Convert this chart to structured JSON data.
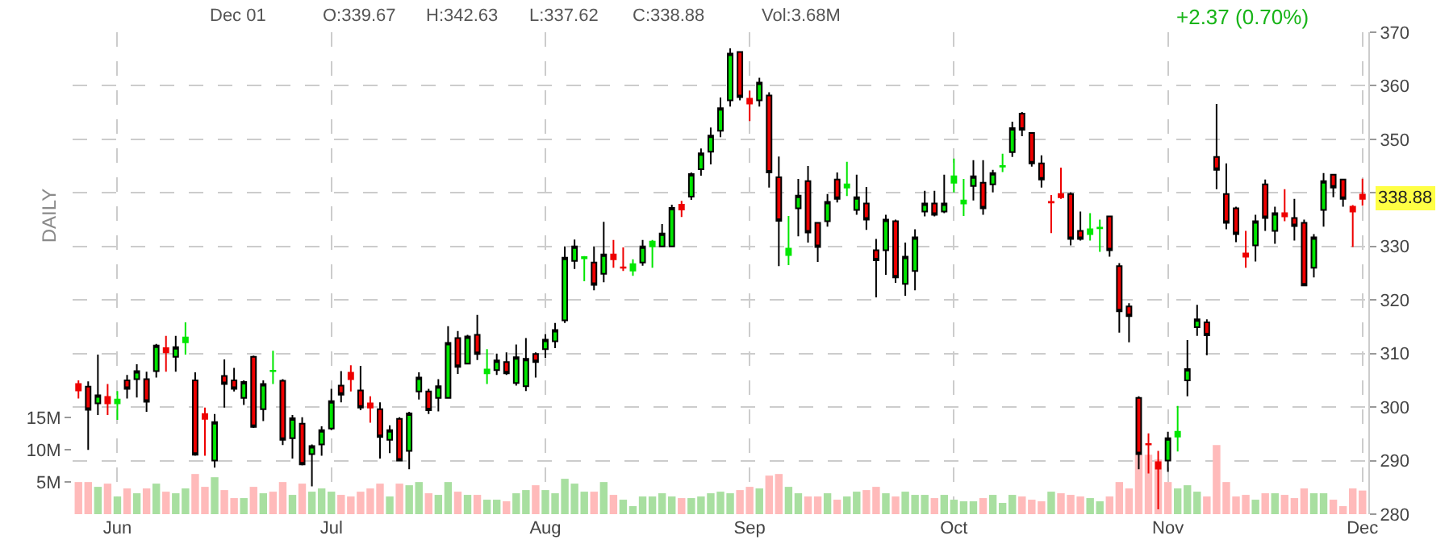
{
  "chart_data": {
    "type": "candlestick",
    "categories": [
      null,
      null,
      null,
      null,
      "Jun",
      null,
      null,
      null,
      null,
      null,
      null,
      null,
      null,
      null,
      null,
      null,
      null,
      null,
      null,
      null,
      null,
      null,
      null,
      null,
      null,
      null,
      "Jul",
      null,
      null,
      null,
      null,
      null,
      null,
      null,
      null,
      null,
      null,
      null,
      null,
      null,
      null,
      null,
      null,
      null,
      null,
      null,
      null,
      null,
      "Aug",
      null,
      null,
      null,
      null,
      null,
      null,
      null,
      null,
      null,
      null,
      null,
      null,
      null,
      null,
      null,
      null,
      null,
      null,
      null,
      null,
      "Sep",
      null,
      null,
      null,
      null,
      null,
      null,
      null,
      null,
      null,
      null,
      null,
      null,
      null,
      null,
      null,
      null,
      null,
      null,
      null,
      null,
      "Oct",
      null,
      null,
      null,
      null,
      null,
      null,
      null,
      null,
      null,
      null,
      null,
      null,
      null,
      null,
      null,
      null,
      null,
      null,
      null,
      null,
      null,
      "Nov",
      null,
      null,
      null,
      null,
      null,
      null,
      null,
      null,
      null,
      null,
      null,
      null,
      null,
      null,
      null,
      null,
      null,
      null,
      null,
      "Dec"
    ],
    "ohlc": [
      [
        304.3,
        305.0,
        301.6,
        303.1
      ],
      [
        303.8,
        304.8,
        292.0,
        299.5
      ],
      [
        300.7,
        309.8,
        298.5,
        302.2
      ],
      [
        301.9,
        304.3,
        298.5,
        300.7
      ],
      [
        300.7,
        303.0,
        297.6,
        301.4
      ],
      [
        305.0,
        306.0,
        301.6,
        303.4
      ],
      [
        305.2,
        308.0,
        301.8,
        306.7
      ],
      [
        305.2,
        306.6,
        299.1,
        301.0
      ],
      [
        306.7,
        311.8,
        305.5,
        311.5
      ],
      [
        311.0,
        313.3,
        306.6,
        310.2
      ],
      [
        309.4,
        313.3,
        306.6,
        311.2
      ],
      [
        312.1,
        315.8,
        309.8,
        313.0
      ],
      [
        305.0,
        306.5,
        290.9,
        291.1
      ],
      [
        298.7,
        299.9,
        290.9,
        297.8
      ],
      [
        290.0,
        298.7,
        288.7,
        297.2
      ],
      [
        305.8,
        308.9,
        299.9,
        304.3
      ],
      [
        305.0,
        307.3,
        302.9,
        303.4
      ],
      [
        301.7,
        305.0,
        300.4,
        304.7
      ],
      [
        309.4,
        309.6,
        296.1,
        296.3
      ],
      [
        299.6,
        305.0,
        297.4,
        304.3
      ],
      [
        306.7,
        310.5,
        304.3,
        306.8
      ],
      [
        304.9,
        305.2,
        292.9,
        293.9
      ],
      [
        294.2,
        298.5,
        290.4,
        297.9
      ],
      [
        296.9,
        298.1,
        289.1,
        289.3
      ],
      [
        291.2,
        293.0,
        285.2,
        292.7
      ],
      [
        293.0,
        296.4,
        290.9,
        295.7
      ],
      [
        296.0,
        303.4,
        295.7,
        301.1
      ],
      [
        304.0,
        306.7,
        300.9,
        302.3
      ],
      [
        306.4,
        307.8,
        302.9,
        305.2
      ],
      [
        303.1,
        307.7,
        299.4,
        299.9
      ],
      [
        300.7,
        302.0,
        297.1,
        299.9
      ],
      [
        299.6,
        300.9,
        290.4,
        294.4
      ],
      [
        293.9,
        296.6,
        291.4,
        295.7
      ],
      [
        297.8,
        298.1,
        289.9,
        290.0
      ],
      [
        291.8,
        299.1,
        288.4,
        298.8
      ],
      [
        302.9,
        306.5,
        301.4,
        305.5
      ],
      [
        302.9,
        303.4,
        298.7,
        299.4
      ],
      [
        301.7,
        305.2,
        299.2,
        303.9
      ],
      [
        301.7,
        315.1,
        301.7,
        312.0
      ],
      [
        312.9,
        314.2,
        306.2,
        307.5
      ],
      [
        308.1,
        313.5,
        308.0,
        313.2
      ],
      [
        313.5,
        317.2,
        308.8,
        309.9
      ],
      [
        306.3,
        310.8,
        304.3,
        307.0
      ],
      [
        306.9,
        310.0,
        306.0,
        308.7
      ],
      [
        308.4,
        310.2,
        306.0,
        306.3
      ],
      [
        304.5,
        311.7,
        304.0,
        309.3
      ],
      [
        303.9,
        312.9,
        303.0,
        309.0
      ],
      [
        309.9,
        310.2,
        305.5,
        308.4
      ],
      [
        310.8,
        313.6,
        309.2,
        312.6
      ],
      [
        312.3,
        315.7,
        311.0,
        314.4
      ],
      [
        316.2,
        330.0,
        315.7,
        327.9
      ],
      [
        327.3,
        331.3,
        325.8,
        330.0
      ],
      [
        327.8,
        328.2,
        323.5,
        328.0
      ],
      [
        327.0,
        330.0,
        321.8,
        322.8
      ],
      [
        324.9,
        334.6,
        323.3,
        328.5
      ],
      [
        328.5,
        331.2,
        326.0,
        327.6
      ],
      [
        326.1,
        329.8,
        325.4,
        326.0
      ],
      [
        325.5,
        327.6,
        324.5,
        326.7
      ],
      [
        327.0,
        331.2,
        326.4,
        330.0
      ],
      [
        330.0,
        331.2,
        326.0,
        330.9
      ],
      [
        330.0,
        334.2,
        330.0,
        332.4
      ],
      [
        330.0,
        337.8,
        330.0,
        337.2
      ],
      [
        337.8,
        338.5,
        335.5,
        336.9
      ],
      [
        339.3,
        343.8,
        338.7,
        343.5
      ],
      [
        344.4,
        348.3,
        343.2,
        347.4
      ],
      [
        347.7,
        352.2,
        345.3,
        350.7
      ],
      [
        351.6,
        357.8,
        350.4,
        355.8
      ],
      [
        357.3,
        367.0,
        356.1,
        366.0
      ],
      [
        366.3,
        366.3,
        357.3,
        357.9
      ],
      [
        357.6,
        359.1,
        353.4,
        356.7
      ],
      [
        357.3,
        361.5,
        356.1,
        360.6
      ],
      [
        358.2,
        358.8,
        341.0,
        343.8
      ],
      [
        342.9,
        346.8,
        326.3,
        334.8
      ],
      [
        328.4,
        335.7,
        326.5,
        329.6
      ],
      [
        337.1,
        342.6,
        331.9,
        339.5
      ],
      [
        342.2,
        345.0,
        330.7,
        332.6
      ],
      [
        334.4,
        334.4,
        327.1,
        329.9
      ],
      [
        334.7,
        339.8,
        333.7,
        338.3
      ],
      [
        342.5,
        343.8,
        338.2,
        338.9
      ],
      [
        341.0,
        345.8,
        339.4,
        341.6
      ],
      [
        336.8,
        343.4,
        335.9,
        339.2
      ],
      [
        338.0,
        341.1,
        333.1,
        335.0
      ],
      [
        329.3,
        331.4,
        320.5,
        327.4
      ],
      [
        329.3,
        335.9,
        324.7,
        335.0
      ],
      [
        334.7,
        335.0,
        323.2,
        324.2
      ],
      [
        323.0,
        330.7,
        320.8,
        328.1
      ],
      [
        325.4,
        333.2,
        321.8,
        331.7
      ],
      [
        336.5,
        340.4,
        335.6,
        338.0
      ],
      [
        338.0,
        340.4,
        335.6,
        335.9
      ],
      [
        336.5,
        343.4,
        336.2,
        338.0
      ],
      [
        341.9,
        346.4,
        340.1,
        343.1
      ],
      [
        338.0,
        342.6,
        335.7,
        338.6
      ],
      [
        341.3,
        346.1,
        338.6,
        343.1
      ],
      [
        341.9,
        346.1,
        335.9,
        337.1
      ],
      [
        341.6,
        344.3,
        340.1,
        343.7
      ],
      [
        344.9,
        347.3,
        343.9,
        345.0
      ],
      [
        347.6,
        353.3,
        346.7,
        352.1
      ],
      [
        354.8,
        355.1,
        350.6,
        351.8
      ],
      [
        351.2,
        351.2,
        344.9,
        345.5
      ],
      [
        345.5,
        347.0,
        341.0,
        342.5
      ],
      [
        338.3,
        339.6,
        332.5,
        338.2
      ],
      [
        339.8,
        344.7,
        338.9,
        339.2
      ],
      [
        339.8,
        340.1,
        330.2,
        331.4
      ],
      [
        332.9,
        336.5,
        331.1,
        331.4
      ],
      [
        332.3,
        336.2,
        331.1,
        333.2
      ],
      [
        333.4,
        335.0,
        329.0,
        333.5
      ],
      [
        335.6,
        335.6,
        328.1,
        329.3
      ],
      [
        326.3,
        326.9,
        313.9,
        317.9
      ],
      [
        318.8,
        319.4,
        312.1,
        317.0
      ],
      [
        301.7,
        302.0,
        288.4,
        291.2
      ],
      [
        293.1,
        295.1,
        287.6,
        293.0
      ],
      [
        289.7,
        291.8,
        280.9,
        288.5
      ],
      [
        290.0,
        295.4,
        287.9,
        294.2
      ],
      [
        294.5,
        300.2,
        291.7,
        295.4
      ],
      [
        305.0,
        312.5,
        302.0,
        307.1
      ],
      [
        314.9,
        319.1,
        313.3,
        316.4
      ],
      [
        315.8,
        316.4,
        309.7,
        313.4
      ],
      [
        346.7,
        356.6,
        340.7,
        344.3
      ],
      [
        339.8,
        345.5,
        333.2,
        334.4
      ],
      [
        337.1,
        337.4,
        330.8,
        332.3
      ],
      [
        328.7,
        332.9,
        326.0,
        328.1
      ],
      [
        330.2,
        335.9,
        327.2,
        334.7
      ],
      [
        341.6,
        342.5,
        332.9,
        335.3
      ],
      [
        332.9,
        337.4,
        330.5,
        336.2
      ],
      [
        336.2,
        340.7,
        334.7,
        335.6
      ],
      [
        335.3,
        338.9,
        331.1,
        333.8
      ],
      [
        334.4,
        335.0,
        322.7,
        322.7
      ],
      [
        326.0,
        332.3,
        324.2,
        331.7
      ],
      [
        336.8,
        343.7,
        333.7,
        342.2
      ],
      [
        343.4,
        343.4,
        339.2,
        341.0
      ],
      [
        342.5,
        342.5,
        337.4,
        338.9
      ],
      [
        337.4,
        337.7,
        329.9,
        336.5
      ],
      [
        339.67,
        342.63,
        337.62,
        338.88
      ]
    ],
    "colors": [
      "#ee0000",
      "#ee0000",
      "#00e600",
      "#ee0000",
      "#00e600",
      "#ee0000",
      "#00e600",
      "#ee0000",
      "#00e600",
      "#ee0000",
      "#00e600",
      "#00e600",
      "#ee0000",
      "#ee0000",
      "#00e600",
      "#ee0000",
      "#ee0000",
      "#00e600",
      "#ee0000",
      "#00e600",
      "#00e600",
      "#ee0000",
      "#00e600",
      "#ee0000",
      "#00e600",
      "#00e600",
      "#00e600",
      "#ee0000",
      "#ee0000",
      "#ee0000",
      "#ee0000",
      "#ee0000",
      "#00e600",
      "#ee0000",
      "#00e600",
      "#00e600",
      "#ee0000",
      "#00e600",
      "#00e600",
      "#ee0000",
      "#00e600",
      "#ee0000",
      "#00e600",
      "#00e600",
      "#ee0000",
      "#00e600",
      "#00e600",
      "#ee0000",
      "#00e600",
      "#00e600",
      "#00e600",
      "#00e600",
      "#00e600",
      "#ee0000",
      "#00e600",
      "#ee0000",
      "#ee0000",
      "#00e600",
      "#00e600",
      "#00e600",
      "#00e600",
      "#00e600",
      "#ee0000",
      "#00e600",
      "#00e600",
      "#00e600",
      "#00e600",
      "#00e600",
      "#ee0000",
      "#ee0000",
      "#00e600",
      "#ee0000",
      "#ee0000",
      "#00e600",
      "#00e600",
      "#ee0000",
      "#ee0000",
      "#00e600",
      "#ee0000",
      "#00e600",
      "#00e600",
      "#ee0000",
      "#ee0000",
      "#00e600",
      "#ee0000",
      "#00e600",
      "#00e600",
      "#00e600",
      "#ee0000",
      "#00e600",
      "#00e600",
      "#00e600",
      "#00e600",
      "#ee0000",
      "#00e600",
      "#00e600",
      "#00e600",
      "#ee0000",
      "#ee0000",
      "#ee0000",
      "#ee0000",
      "#ee0000",
      "#ee0000",
      "#ee0000",
      "#00e600",
      "#00e600",
      "#ee0000",
      "#ee0000",
      "#ee0000",
      "#ee0000",
      "#ee0000",
      "#ee0000",
      "#00e600",
      "#00e600",
      "#00e600",
      "#00e600",
      "#ee0000",
      "#ee0000",
      "#ee0000",
      "#ee0000",
      "#ee0000",
      "#00e600",
      "#ee0000",
      "#00e600",
      "#ee0000",
      "#ee0000",
      "#ee0000",
      "#00e600",
      "#00e600",
      "#ee0000",
      "#ee0000",
      "#ee0000",
      "#ee0000"
    ],
    "series": [
      {
        "type": "bar",
        "axis": "y2",
        "values": [
          5.0,
          5.0,
          4.25,
          4.75,
          2.75,
          4.0,
          3.25,
          4.0,
          4.75,
          3.5,
          3.25,
          4.0,
          6.25,
          4.25,
          5.75,
          3.75,
          2.5,
          2.5,
          4.25,
          3.25,
          3.5,
          5.0,
          3.0,
          4.75,
          3.5,
          4.0,
          3.5,
          3.0,
          2.75,
          3.5,
          4.0,
          4.75,
          2.75,
          4.75,
          4.5,
          5.0,
          3.25,
          3.0,
          5.0,
          3.5,
          3.0,
          3.0,
          2.25,
          2.25,
          2.0,
          3.25,
          3.75,
          4.5,
          3.75,
          3.25,
          5.5,
          4.75,
          3.5,
          3.5,
          5.0,
          3.0,
          2.25,
          1.25,
          2.75,
          2.75,
          3.25,
          2.75,
          2.5,
          2.5,
          2.75,
          3.25,
          3.5,
          3.25,
          3.75,
          4.25,
          4.0,
          6.0,
          6.25,
          4.25,
          3.25,
          2.75,
          2.75,
          3.25,
          2.25,
          2.75,
          3.5,
          3.75,
          4.25,
          3.25,
          2.75,
          3.5,
          3.0,
          3.0,
          2.5,
          3.0,
          2.25,
          2.0,
          2.0,
          2.5,
          3.0,
          1.75,
          3.0,
          2.75,
          2.25,
          2.0,
          3.5,
          3.25,
          3.0,
          2.75,
          2.5,
          2.0,
          2.75,
          5.0,
          4.0,
          9.25,
          9.25,
          8.5,
          5.0,
          4.0,
          4.5,
          3.5,
          2.75,
          10.75,
          5.0,
          2.75,
          3.0,
          2.25,
          3.25,
          3.25,
          3.0,
          2.5,
          4.0,
          3.25,
          3.25,
          2.25,
          1.25,
          4.0,
          3.68
        ],
        "colors": [
          "#ffbaba",
          "#ffbaba",
          "#a8dfa0",
          "#ffbaba",
          "#a8dfa0",
          "#ffbaba",
          "#a8dfa0",
          "#ffbaba",
          "#a8dfa0",
          "#ffbaba",
          "#a8dfa0",
          "#a8dfa0",
          "#ffbaba",
          "#ffbaba",
          "#a8dfa0",
          "#ffbaba",
          "#ffbaba",
          "#a8dfa0",
          "#ffbaba",
          "#a8dfa0",
          "#ffbaba",
          "#ffbaba",
          "#a8dfa0",
          "#ffbaba",
          "#a8dfa0",
          "#a8dfa0",
          "#a8dfa0",
          "#ffbaba",
          "#ffbaba",
          "#ffbaba",
          "#ffbaba",
          "#ffbaba",
          "#a8dfa0",
          "#ffbaba",
          "#a8dfa0",
          "#a8dfa0",
          "#ffbaba",
          "#a8dfa0",
          "#a8dfa0",
          "#ffbaba",
          "#a8dfa0",
          "#ffbaba",
          "#a8dfa0",
          "#a8dfa0",
          "#ffbaba",
          "#a8dfa0",
          "#a8dfa0",
          "#ffbaba",
          "#a8dfa0",
          "#a8dfa0",
          "#a8dfa0",
          "#a8dfa0",
          "#a8dfa0",
          "#ffbaba",
          "#a8dfa0",
          "#ffbaba",
          "#a8dfa0",
          "#a8dfa0",
          "#a8dfa0",
          "#a8dfa0",
          "#a8dfa0",
          "#a8dfa0",
          "#ffbaba",
          "#a8dfa0",
          "#a8dfa0",
          "#a8dfa0",
          "#a8dfa0",
          "#a8dfa0",
          "#ffbaba",
          "#ffbaba",
          "#a8dfa0",
          "#ffbaba",
          "#ffbaba",
          "#a8dfa0",
          "#a8dfa0",
          "#ffbaba",
          "#ffbaba",
          "#a8dfa0",
          "#ffbaba",
          "#a8dfa0",
          "#a8dfa0",
          "#ffbaba",
          "#ffbaba",
          "#a8dfa0",
          "#ffbaba",
          "#a8dfa0",
          "#a8dfa0",
          "#a8dfa0",
          "#ffbaba",
          "#a8dfa0",
          "#a8dfa0",
          "#a8dfa0",
          "#a8dfa0",
          "#ffbaba",
          "#a8dfa0",
          "#a8dfa0",
          "#a8dfa0",
          "#ffbaba",
          "#ffbaba",
          "#ffbaba",
          "#a8dfa0",
          "#ffbaba",
          "#ffbaba",
          "#ffbaba",
          "#a8dfa0",
          "#a8dfa0",
          "#ffbaba",
          "#ffbaba",
          "#ffbaba",
          "#ffbaba",
          "#ffbaba",
          "#ffbaba",
          "#ffbaba",
          "#a8dfa0",
          "#a8dfa0",
          "#a8dfa0",
          "#ffbaba",
          "#ffbaba",
          "#ffbaba",
          "#ffbaba",
          "#ffbaba",
          "#a8dfa0",
          "#ffbaba",
          "#a8dfa0",
          "#ffbaba",
          "#ffbaba",
          "#ffbaba",
          "#a8dfa0",
          "#a8dfa0",
          "#ffbaba",
          "#ffbaba",
          "#ffbaba",
          "#ffbaba"
        ]
      }
    ],
    "ylim": [
      280,
      370
    ],
    "yticks": [
      280,
      290,
      300,
      310,
      320,
      330,
      {
        "value": 340,
        "label": null
      },
      350,
      360,
      370
    ],
    "y2lim": [
      0,
      75
    ],
    "y2ticks": [
      {
        "value": 5,
        "label": "5M"
      },
      {
        "value": 10,
        "label": "10M"
      },
      {
        "value": 15,
        "label": "15M"
      }
    ],
    "grid": true,
    "annotations": [
      "Dec 01",
      "O:339.67",
      "H:342.63",
      "L:337.62",
      "C:338.88",
      "Vol:3.68M",
      "+2.37 (0.70%)",
      "DAILY",
      {
        "text": "338.88",
        "x": "Dec",
        "y": 338.88
      }
    ]
  }
}
